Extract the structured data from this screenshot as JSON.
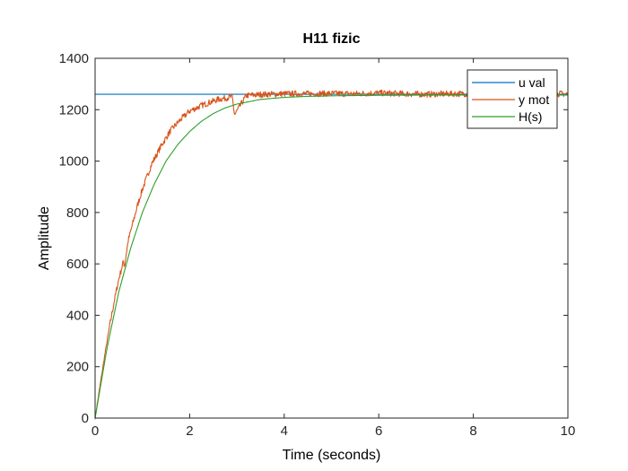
{
  "chart_data": {
    "type": "line",
    "title": "H11 fizic",
    "xlabel": "Time (seconds)",
    "ylabel": "Amplitude",
    "xlim": [
      0,
      10
    ],
    "ylim": [
      0,
      1400
    ],
    "xticks": [
      0,
      2,
      4,
      6,
      8,
      10
    ],
    "yticks": [
      0,
      200,
      400,
      600,
      800,
      1000,
      1200,
      1400
    ],
    "grid": false,
    "legend_position": "top-right",
    "series": [
      {
        "name": "u val",
        "color": "#0072BD",
        "x": [
          0,
          10
        ],
        "y": [
          1260,
          1260
        ]
      },
      {
        "name": "y mot",
        "color": "#D95319",
        "x": [
          0,
          0.1,
          0.2,
          0.3,
          0.4,
          0.5,
          0.6,
          0.62,
          0.7,
          0.8,
          0.9,
          1.0,
          1.2,
          1.4,
          1.6,
          1.8,
          2.0,
          2.3,
          2.6,
          2.9,
          2.95,
          3.2,
          3.6,
          4.0,
          4.5,
          5.0,
          5.5,
          6.0,
          6.5,
          7.0,
          7.5,
          8.0,
          8.5,
          9.0,
          9.5,
          10.0
        ],
        "y": [
          0,
          120,
          240,
          350,
          450,
          540,
          610,
          590,
          690,
          760,
          830,
          890,
          990,
          1060,
          1120,
          1160,
          1195,
          1220,
          1240,
          1250,
          1180,
          1255,
          1260,
          1262,
          1262,
          1263,
          1262,
          1265,
          1262,
          1260,
          1262,
          1262,
          1262,
          1262,
          1262,
          1262
        ],
        "noise_amplitude": 12
      },
      {
        "name": "H(s)",
        "color": "#2CA02C",
        "x": [
          0,
          0.25,
          0.5,
          0.75,
          1.0,
          1.25,
          1.5,
          1.75,
          2.0,
          2.25,
          2.5,
          2.75,
          3.0,
          3.5,
          4.0,
          4.5,
          5.0,
          6.0,
          7.0,
          8.0,
          9.0,
          10.0
        ],
        "y": [
          0,
          270,
          490,
          660,
          800,
          910,
          1000,
          1065,
          1115,
          1155,
          1185,
          1207,
          1222,
          1240,
          1248,
          1252,
          1254,
          1256,
          1257,
          1257,
          1257,
          1257
        ]
      }
    ]
  }
}
